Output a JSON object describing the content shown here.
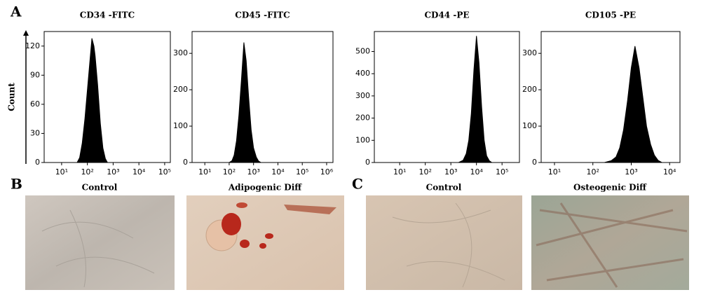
{
  "chart_data": [
    {
      "type": "area",
      "title": "CD34 -FITC",
      "ylabel": "Count",
      "xscale": "log",
      "color": "#000000",
      "x": [
        40,
        50,
        63,
        80,
        100,
        126,
        150,
        180,
        200,
        250,
        320,
        400,
        500,
        600
      ],
      "values": [
        0,
        5,
        20,
        45,
        75,
        105,
        128,
        120,
        110,
        80,
        40,
        15,
        4,
        0
      ],
      "xlim": [
        2.1,
        166000
      ],
      "ylim": [
        0,
        135
      ],
      "xticks": [
        {
          "value": 10,
          "label": "10¹"
        },
        {
          "value": 100,
          "label": "10²"
        },
        {
          "value": 1000,
          "label": "10³"
        },
        {
          "value": 10000,
          "label": "10⁴"
        },
        {
          "value": 100000,
          "label": "10⁵"
        }
      ],
      "yticks": [
        0,
        30,
        60,
        90,
        120
      ]
    },
    {
      "type": "area",
      "title": "CD45 -FITC",
      "xscale": "log",
      "color": "#000000",
      "x": [
        100,
        130,
        160,
        200,
        250,
        320,
        400,
        500,
        630,
        800,
        1000,
        1300,
        1600,
        2000
      ],
      "values": [
        0,
        5,
        20,
        60,
        130,
        230,
        330,
        280,
        180,
        90,
        40,
        15,
        4,
        0
      ],
      "xlim": [
        3,
        1820000
      ],
      "ylim": [
        0,
        360
      ],
      "xticks": [
        {
          "value": 10,
          "label": "10¹"
        },
        {
          "value": 100,
          "label": "10²"
        },
        {
          "value": 1000,
          "label": "10³"
        },
        {
          "value": 10000,
          "label": "10⁴"
        },
        {
          "value": 100000,
          "label": "10⁵"
        },
        {
          "value": 1000000,
          "label": "10⁶"
        }
      ],
      "yticks": [
        0,
        100,
        200,
        300
      ]
    },
    {
      "type": "area",
      "title": "CD44 -PE",
      "xscale": "log",
      "color": "#000000",
      "x": [
        2000,
        3000,
        4000,
        5000,
        6300,
        8000,
        10000,
        12600,
        16000,
        20000,
        25000,
        32000,
        40000
      ],
      "values": [
        0,
        10,
        40,
        100,
        220,
        420,
        570,
        450,
        250,
        100,
        30,
        8,
        0
      ],
      "xlim": [
        1.02,
        479000
      ],
      "ylim": [
        0,
        590
      ],
      "xticks": [
        {
          "value": 10,
          "label": "10¹"
        },
        {
          "value": 100,
          "label": "10²"
        },
        {
          "value": 1000,
          "label": "10³"
        },
        {
          "value": 10000,
          "label": "10⁴"
        },
        {
          "value": 100000,
          "label": "10⁵"
        }
      ],
      "yticks": [
        0,
        100,
        200,
        300,
        400,
        500
      ]
    },
    {
      "type": "area",
      "title": "CD105 -PE",
      "xscale": "log",
      "color": "#000000",
      "x": [
        200,
        300,
        400,
        500,
        630,
        800,
        1000,
        1250,
        1600,
        2000,
        2500,
        3200,
        4000,
        5000,
        6300
      ],
      "values": [
        0,
        5,
        15,
        40,
        90,
        170,
        260,
        320,
        260,
        180,
        100,
        50,
        20,
        6,
        0
      ],
      "xlim": [
        4.5,
        18600
      ],
      "ylim": [
        0,
        360
      ],
      "xticks": [
        {
          "value": 10,
          "label": "10¹"
        },
        {
          "value": 100,
          "label": "10²"
        },
        {
          "value": 1000,
          "label": "10³"
        },
        {
          "value": 10000,
          "label": "10⁴"
        }
      ],
      "yticks": [
        0,
        100,
        200,
        300
      ]
    }
  ],
  "panel_labels": [
    "A",
    "B",
    "C"
  ],
  "images": [
    {
      "caption": "Control"
    },
    {
      "caption": "Adipogenic Diff"
    },
    {
      "caption": "Control"
    },
    {
      "caption": "Osteogenic Diff"
    }
  ]
}
